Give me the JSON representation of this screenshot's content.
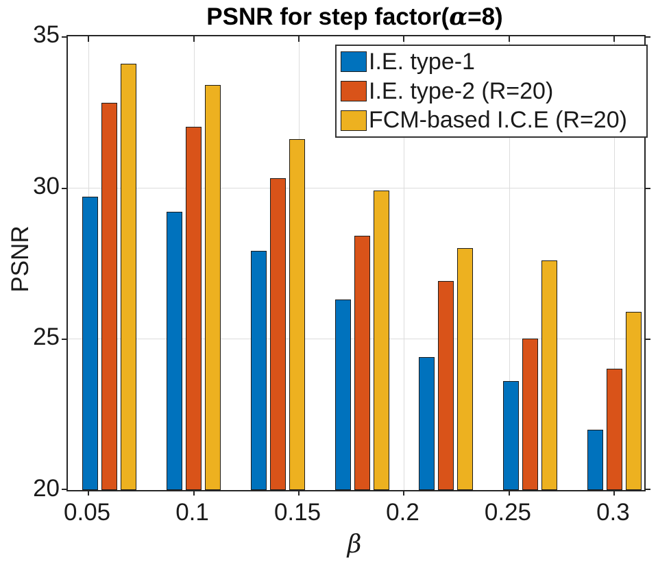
{
  "figure": {
    "title": {
      "prefix": "PSNR for step factor(",
      "alpha": "α",
      "suffix": "=8)"
    },
    "xlabel": "β",
    "ylabel": "PSNR"
  },
  "chart_data": {
    "type": "bar",
    "title": "PSNR for step factor(α=8)",
    "xlabel": "β",
    "ylabel": "PSNR",
    "ylim": [
      20,
      35
    ],
    "xlim": [
      0.0402,
      0.3142
    ],
    "grid": true,
    "legend_position": "top-right",
    "x_groups": [
      0.06,
      0.1,
      0.14,
      0.18,
      0.22,
      0.26,
      0.3
    ],
    "xticks": [
      {
        "value": 0.05,
        "label": "0.05"
      },
      {
        "value": 0.1,
        "label": "0.1"
      },
      {
        "value": 0.15,
        "label": "0.15"
      },
      {
        "value": 0.2,
        "label": "0.2"
      },
      {
        "value": 0.25,
        "label": "0.25"
      },
      {
        "value": 0.3,
        "label": "0.3"
      }
    ],
    "yticks": [
      {
        "value": 20,
        "label": "20"
      },
      {
        "value": 25,
        "label": "25"
      },
      {
        "value": 30,
        "label": "30"
      },
      {
        "value": 35,
        "label": "35"
      }
    ],
    "series": [
      {
        "name": "I.E. type-1",
        "color": "#0072BD",
        "values": [
          29.7,
          29.2,
          27.9,
          26.3,
          24.4,
          23.6,
          22.0
        ]
      },
      {
        "name": "I.E. type-2 (R=20)",
        "color": "#D95319",
        "values": [
          32.8,
          32.0,
          30.3,
          28.4,
          26.9,
          25.0,
          24.0
        ]
      },
      {
        "name": "FCM-based I.C.E (R=20)",
        "color": "#EDB120",
        "values": [
          34.1,
          33.4,
          31.6,
          29.9,
          28.0,
          27.6,
          25.9
        ]
      }
    ]
  }
}
